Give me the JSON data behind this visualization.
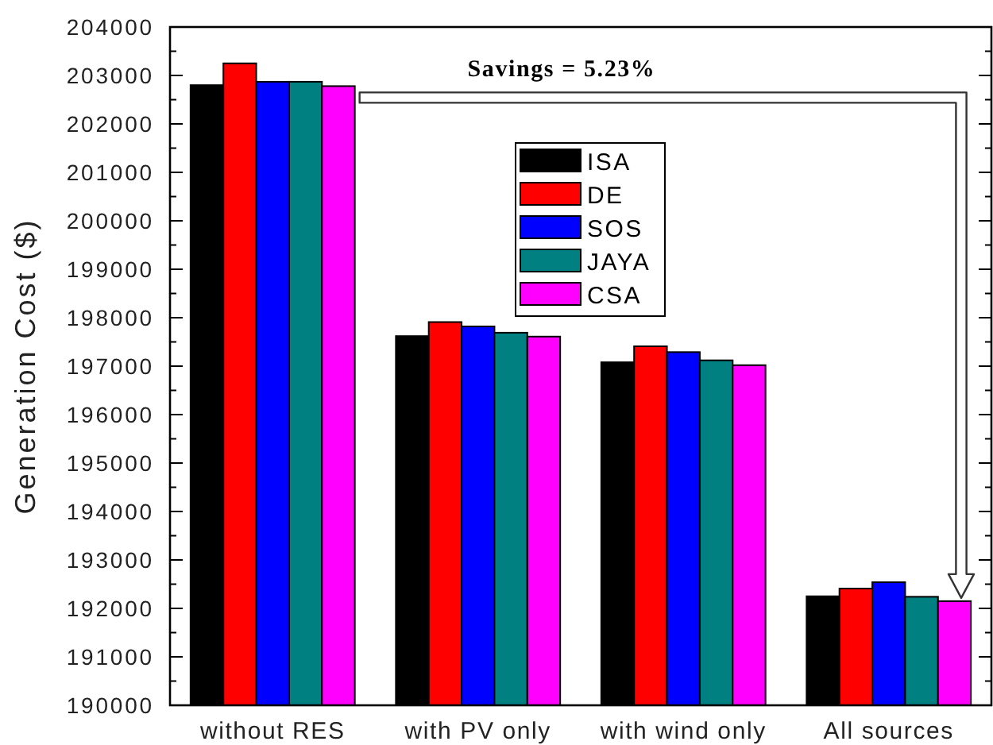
{
  "chart_data": {
    "type": "bar",
    "ylabel": "Generation Cost ($)",
    "annotations": [
      "Savings = 5.23%"
    ],
    "categories": [
      "without RES",
      "with PV only",
      "with wind only",
      "All sources"
    ],
    "series": [
      {
        "name": "ISA",
        "color": "#000000",
        "values": [
          202800,
          197620,
          197080,
          192250
        ]
      },
      {
        "name": "DE",
        "color": "#ff0000",
        "values": [
          203250,
          197910,
          197410,
          192410
        ]
      },
      {
        "name": "SOS",
        "color": "#0000ff",
        "values": [
          202870,
          197820,
          197290,
          192540
        ]
      },
      {
        "name": "JAYA",
        "color": "#008080",
        "values": [
          202870,
          197690,
          197120,
          192240
        ]
      },
      {
        "name": "CSA",
        "color": "#ff00ff",
        "values": [
          202780,
          197610,
          197020,
          192150
        ]
      }
    ],
    "ylim": [
      190000,
      204000
    ],
    "yticks": [
      190000,
      {
        "value": 190500,
        "label": null
      },
      191000,
      {
        "value": 191500,
        "label": null
      },
      192000,
      {
        "value": 192500,
        "label": null
      },
      193000,
      {
        "value": 193500,
        "label": null
      },
      194000,
      {
        "value": 194500,
        "label": null
      },
      195000,
      {
        "value": 195500,
        "label": null
      },
      196000,
      {
        "value": 196500,
        "label": null
      },
      197000,
      {
        "value": 197500,
        "label": null
      },
      198000,
      {
        "value": 198500,
        "label": null
      },
      199000,
      {
        "value": 199500,
        "label": null
      },
      200000,
      {
        "value": 200500,
        "label": null
      },
      201000,
      {
        "value": 201500,
        "label": null
      },
      202000,
      {
        "value": 202500,
        "label": null
      },
      203000,
      {
        "value": 203500,
        "label": null
      },
      204000
    ],
    "legend": "top"
  }
}
